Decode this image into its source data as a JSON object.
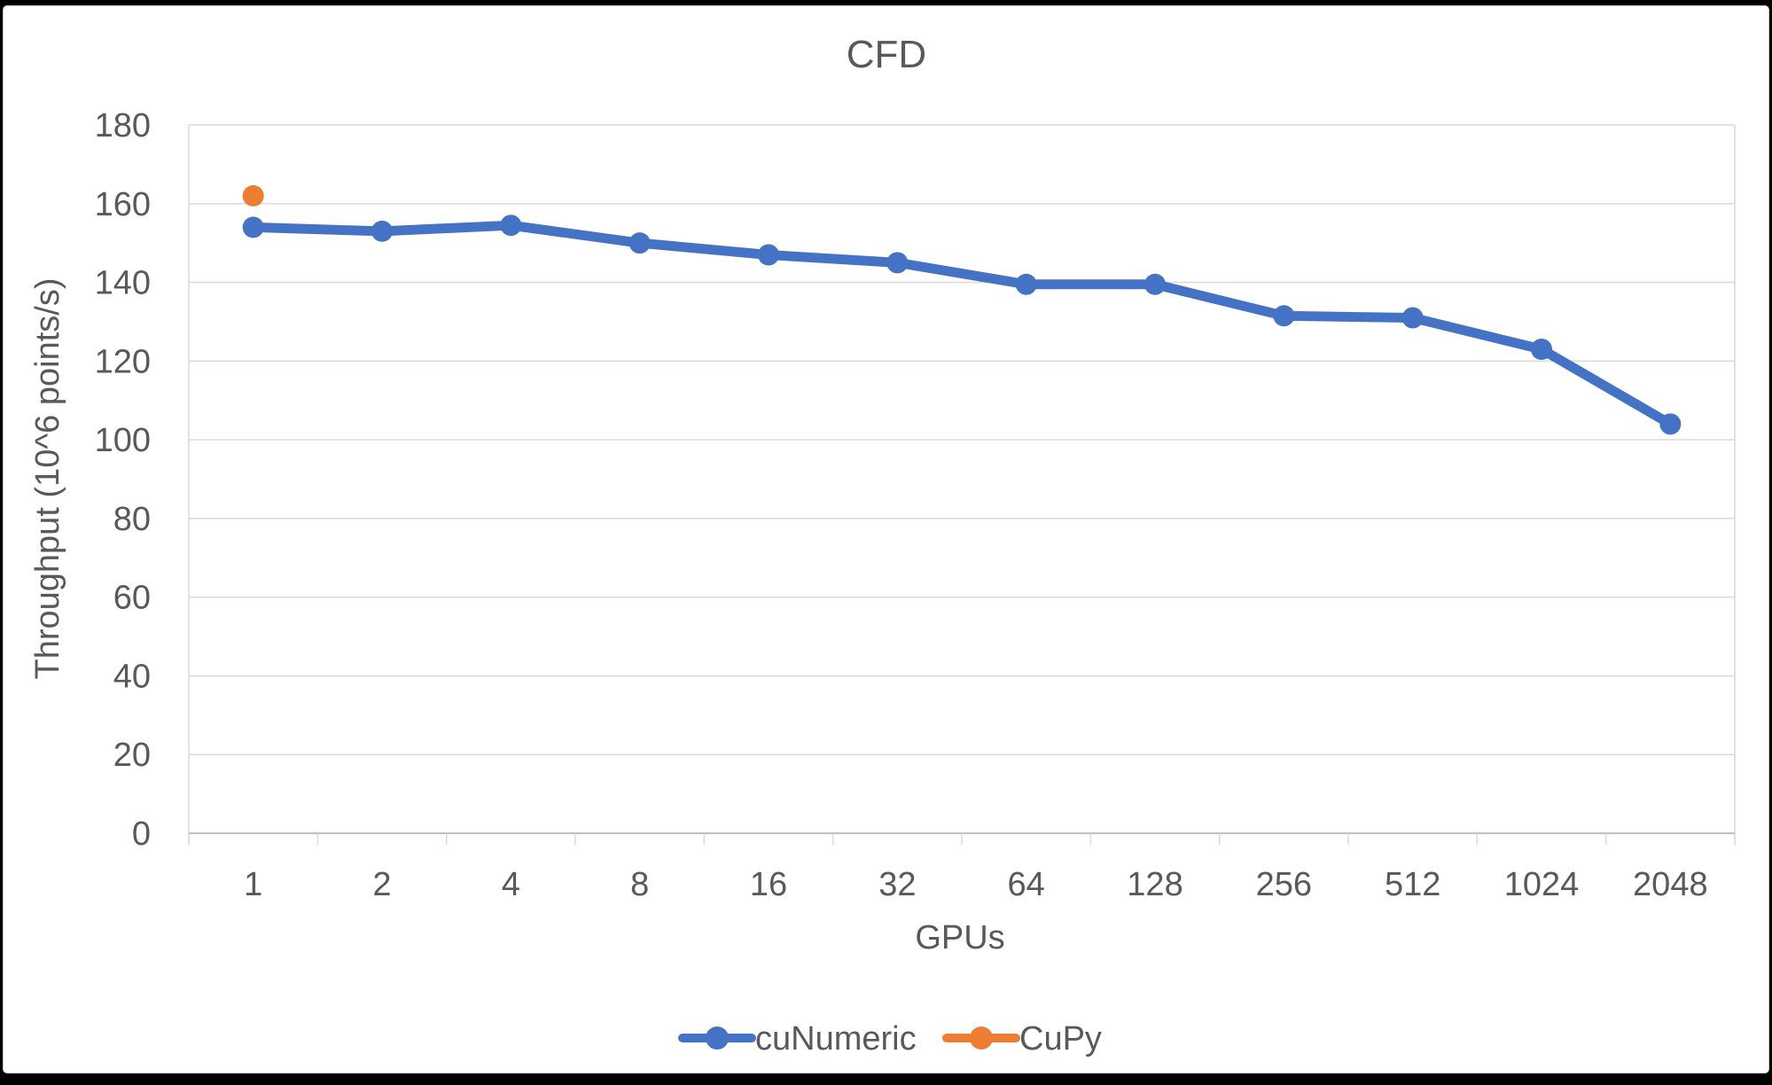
{
  "chart_data": {
    "type": "line",
    "title": "CFD",
    "xlabel": "GPUs",
    "ylabel": "Throughput (10^6 points/s)",
    "categories": [
      "1",
      "2",
      "4",
      "8",
      "16",
      "32",
      "64",
      "128",
      "256",
      "512",
      "1024",
      "2048"
    ],
    "series": [
      {
        "name": "cuNumeric",
        "color": "#4472C4",
        "values": [
          154,
          153,
          154.5,
          150,
          147,
          145,
          139.5,
          139.5,
          131.5,
          131,
          123,
          104
        ]
      },
      {
        "name": "CuPy",
        "color": "#ED7D31",
        "values": [
          162,
          null,
          null,
          null,
          null,
          null,
          null,
          null,
          null,
          null,
          null,
          null
        ]
      }
    ],
    "ylim": [
      0,
      180
    ],
    "ytick_step": 20,
    "ytick_labels": [
      "0",
      "20",
      "40",
      "60",
      "80",
      "100",
      "120",
      "140",
      "160",
      "180"
    ],
    "grid": true,
    "legend_position": "bottom",
    "colors": {
      "grid": "#D9D9D9",
      "axis": "#BFBFBF",
      "text": "#595959"
    }
  }
}
